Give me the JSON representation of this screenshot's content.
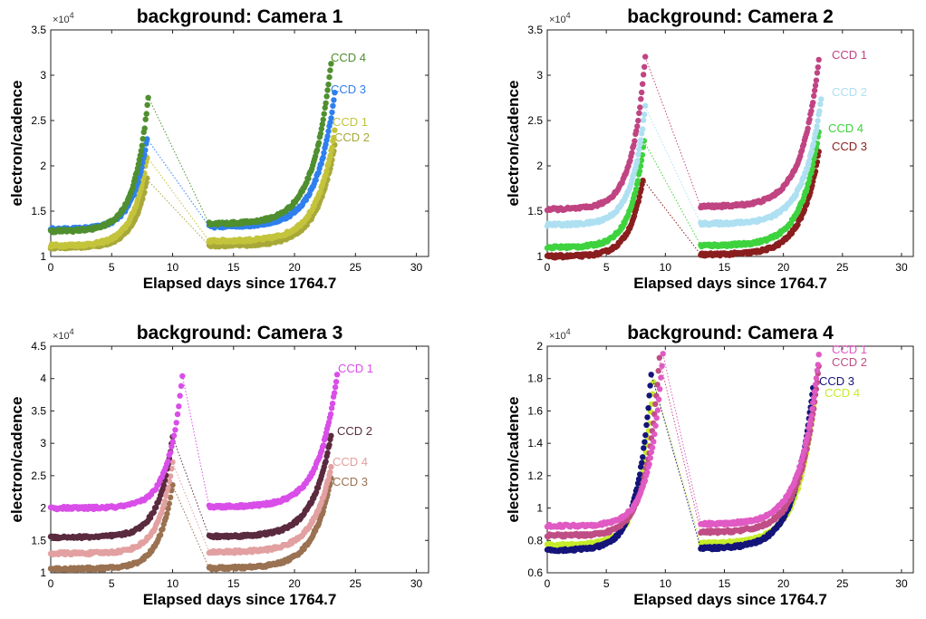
{
  "chart_data": [
    {
      "type": "scatter",
      "title": "background: Camera 1",
      "xlabel": "Elapsed days since 1764.7",
      "ylabel": "electron/cadence",
      "y_exponent": "×10^4",
      "xlim": [
        0,
        31
      ],
      "ylim": [
        1,
        3.5
      ],
      "xticks": [
        0,
        5,
        10,
        15,
        20,
        25,
        30
      ],
      "yticks": [
        1,
        1.5,
        2,
        2.5,
        3,
        3.5
      ],
      "grid": false,
      "legend": "inline labels at end of each series",
      "series": [
        {
          "name": "CCD 4",
          "color": "#4f8f2f",
          "base1": 1.28,
          "peak1": 2.76,
          "base2": 1.36,
          "end": 3.13
        },
        {
          "name": "CCD 3",
          "color": "#2f7fee",
          "base1": 1.3,
          "peak1": 2.3,
          "base2": 1.33,
          "end": 2.8
        },
        {
          "name": "CCD 1",
          "color": "#c4c43c",
          "base1": 1.12,
          "peak1": 2.1,
          "base2": 1.17,
          "end": 2.38
        },
        {
          "name": "CCD 2",
          "color": "#a8a83a",
          "base1": 1.1,
          "peak1": 1.85,
          "base2": 1.12,
          "end": 2.22
        }
      ]
    },
    {
      "type": "scatter",
      "title": "background: Camera 2",
      "xlabel": "Elapsed days since 1764.7",
      "ylabel": "electron/cadence",
      "y_exponent": "×10^4",
      "xlim": [
        0,
        31
      ],
      "ylim": [
        1,
        3.5
      ],
      "xticks": [
        0,
        5,
        10,
        15,
        20,
        25,
        30
      ],
      "yticks": [
        1,
        1.5,
        2,
        2.5,
        3,
        3.5
      ],
      "grid": false,
      "legend": "inline labels at end of each series",
      "series": [
        {
          "name": "CCD 1",
          "color": "#c04482",
          "base1": 1.52,
          "peak1": 3.2,
          "base2": 1.55,
          "end": 3.17
        },
        {
          "name": "CCD 2",
          "color": "#aee0f2",
          "base1": 1.35,
          "peak1": 2.65,
          "base2": 1.36,
          "end": 2.74
        },
        {
          "name": "CCD 4",
          "color": "#3ed33e",
          "base1": 1.1,
          "peak1": 2.27,
          "base2": 1.12,
          "end": 2.37
        },
        {
          "name": "CCD 3",
          "color": "#8a1e1e",
          "base1": 1.0,
          "peak1": 1.85,
          "base2": 1.02,
          "end": 2.15
        }
      ]
    },
    {
      "type": "scatter",
      "title": "background: Camera 3",
      "xlabel": "Elapsed days since 1764.7",
      "ylabel": "electron/cadence",
      "y_exponent": "×10^4",
      "xlim": [
        0,
        31
      ],
      "ylim": [
        1,
        4.5
      ],
      "xticks": [
        0,
        5,
        10,
        15,
        20,
        25,
        30
      ],
      "yticks": [
        1,
        1.5,
        2,
        2.5,
        3,
        3.5,
        4,
        4.5
      ],
      "grid": false,
      "legend": "inline labels at end of each series",
      "series": [
        {
          "name": "CCD 1",
          "color": "#d94ee8",
          "base1": 2.0,
          "peak1": 4.05,
          "base2": 2.02,
          "end": 4.07
        },
        {
          "name": "CCD 2",
          "color": "#5a2a3e",
          "base1": 1.55,
          "peak1": 3.1,
          "base2": 1.56,
          "end": 3.13
        },
        {
          "name": "CCD 4",
          "color": "#e2a0a0",
          "base1": 1.3,
          "peak1": 2.7,
          "base2": 1.32,
          "end": 2.63
        },
        {
          "name": "CCD 3",
          "color": "#9a7252",
          "base1": 1.06,
          "peak1": 2.35,
          "base2": 1.07,
          "end": 2.45
        }
      ]
    },
    {
      "type": "scatter",
      "title": "background: Camera 4",
      "xlabel": "Elapsed days since 1764.7",
      "ylabel": "electron/cadence",
      "y_exponent": "×10^4",
      "xlim": [
        0,
        31
      ],
      "ylim": [
        0.6,
        2
      ],
      "xticks": [
        0,
        5,
        10,
        15,
        20,
        25,
        30
      ],
      "yticks": [
        0.6,
        0.8,
        1,
        1.2,
        1.4,
        1.6,
        1.8,
        2
      ],
      "grid": false,
      "legend": "inline labels at end of each series",
      "series": [
        {
          "name": "CCD 1",
          "color": "#e05ac4",
          "base1": 0.89,
          "peak1": 1.95,
          "base2": 0.9,
          "end": 1.94
        },
        {
          "name": "CCD 2",
          "color": "#c04e86",
          "base1": 0.83,
          "peak1": 1.92,
          "base2": 0.85,
          "end": 1.87
        },
        {
          "name": "CCD 3",
          "color": "#14147a",
          "base1": 0.74,
          "peak1": 1.83,
          "base2": 0.75,
          "end": 1.75
        },
        {
          "name": "CCD 4",
          "color": "#c6ec2a",
          "base1": 0.77,
          "peak1": 1.78,
          "base2": 0.78,
          "end": 1.7
        }
      ]
    }
  ]
}
